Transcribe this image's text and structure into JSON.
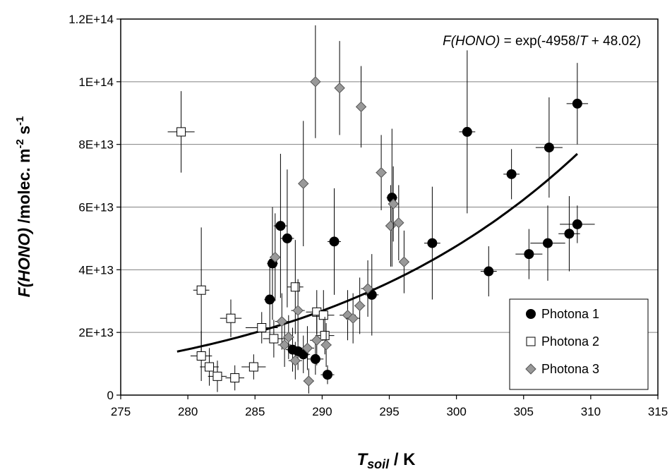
{
  "chart_data": {
    "type": "scatter",
    "equation_text": "F(HONO) = exp(-4958/T + 48.02)",
    "equation_parts": {
      "lhs": "F(HONO)",
      "mid": " = exp(-4958/",
      "var": "T",
      "rhs": " + 48.02)"
    },
    "xlabel": {
      "main": "T",
      "sub": "soil",
      "rest": " / K"
    },
    "ylabel": {
      "main": "F(HONO)",
      "rest": "  /molec. m",
      "sup1": "-2",
      "mid": " s",
      "sup2": "-1"
    },
    "xlim": [
      275,
      315
    ],
    "ylim": [
      0,
      120000000000000.0
    ],
    "xticks": [
      275,
      280,
      285,
      290,
      295,
      300,
      305,
      310,
      315
    ],
    "xtick_labels": [
      "275",
      "280",
      "285",
      "290",
      "295",
      "300",
      "305",
      "310",
      "315"
    ],
    "yticks": [
      0,
      20000000000000.0,
      40000000000000.0,
      60000000000000.0,
      80000000000000.0,
      100000000000000.0,
      120000000000000.0
    ],
    "ytick_labels": [
      "0",
      "2E+13",
      "4E+13",
      "6E+13",
      "8E+13",
      "1E+14",
      "1.2E+14"
    ],
    "grid": "horizontal",
    "legend_position": "bottom-right",
    "fit_curve": {
      "a": -4958,
      "b": 48.02,
      "x_range": [
        279.2,
        309.0
      ],
      "color": "#000000"
    },
    "series": [
      {
        "name": "Photona 1",
        "marker": "circle",
        "fill": "#000000",
        "points": [
          {
            "x": 286.1,
            "y": 30500000000000.0,
            "xerr": 0.4,
            "yerr": 13000000000000.0
          },
          {
            "x": 286.3,
            "y": 42000000000000.0,
            "xerr": 0.4,
            "yerr": 18000000000000.0
          },
          {
            "x": 286.9,
            "y": 54000000000000.0,
            "xerr": 0.5,
            "yerr": 23000000000000.0
          },
          {
            "x": 287.4,
            "y": 50000000000000.0,
            "xerr": 0.5,
            "yerr": 22000000000000.0
          },
          {
            "x": 287.8,
            "y": 14500000000000.0,
            "xerr": 0.5,
            "yerr": 7000000000000.0
          },
          {
            "x": 288.2,
            "y": 14000000000000.0,
            "xerr": 0.6,
            "yerr": 6000000000000.0
          },
          {
            "x": 288.6,
            "y": 13000000000000.0,
            "xerr": 0.5,
            "yerr": 6000000000000.0
          },
          {
            "x": 289.5,
            "y": 11500000000000.0,
            "xerr": 0.6,
            "yerr": 5000000000000.0
          },
          {
            "x": 290.4,
            "y": 6500000000000.0,
            "xerr": 0.5,
            "yerr": 3000000000000.0
          },
          {
            "x": 290.9,
            "y": 49000000000000.0,
            "xerr": 0.5,
            "yerr": 17000000000000.0
          },
          {
            "x": 293.7,
            "y": 32000000000000.0,
            "xerr": 0.5,
            "yerr": 13000000000000.0
          },
          {
            "x": 295.2,
            "y": 63000000000000.0,
            "xerr": 0.4,
            "yerr": 22000000000000.0
          },
          {
            "x": 298.2,
            "y": 48500000000000.0,
            "xerr": 0.6,
            "yerr": 18000000000000.0
          },
          {
            "x": 300.8,
            "y": 84000000000000.0,
            "xerr": 0.6,
            "yerr": 26000000000000.0
          },
          {
            "x": 302.4,
            "y": 39500000000000.0,
            "xerr": 0.6,
            "yerr": 8000000000000.0
          },
          {
            "x": 304.1,
            "y": 70500000000000.0,
            "xerr": 0.6,
            "yerr": 8000000000000.0
          },
          {
            "x": 305.4,
            "y": 45000000000000.0,
            "xerr": 1.0,
            "yerr": 8000000000000.0
          },
          {
            "x": 306.8,
            "y": 48500000000000.0,
            "xerr": 1.3,
            "yerr": 12000000000000.0
          },
          {
            "x": 306.9,
            "y": 79000000000000.0,
            "xerr": 1.0,
            "yerr": 16000000000000.0
          },
          {
            "x": 308.4,
            "y": 51500000000000.0,
            "xerr": 0.8,
            "yerr": 12000000000000.0
          },
          {
            "x": 309.0,
            "y": 93000000000000.0,
            "xerr": 0.8,
            "yerr": 13000000000000.0
          },
          {
            "x": 309.0,
            "y": 54500000000000.0,
            "xerr": 1.3,
            "yerr": 6000000000000.0
          }
        ]
      },
      {
        "name": "Photona 2",
        "marker": "square",
        "fill": "#ffffff",
        "points": [
          {
            "x": 279.5,
            "y": 84000000000000.0,
            "xerr": 1.0,
            "yerr": 13000000000000.0
          },
          {
            "x": 281.0,
            "y": 33500000000000.0,
            "xerr": 0.6,
            "yerr": 20000000000000.0
          },
          {
            "x": 281.0,
            "y": 12500000000000.0,
            "xerr": 0.8,
            "yerr": 8000000000000.0
          },
          {
            "x": 281.6,
            "y": 9000000000000.0,
            "xerr": 0.7,
            "yerr": 6000000000000.0
          },
          {
            "x": 282.2,
            "y": 6000000000000.0,
            "xerr": 0.7,
            "yerr": 5000000000000.0
          },
          {
            "x": 283.2,
            "y": 24500000000000.0,
            "xerr": 0.8,
            "yerr": 6000000000000.0
          },
          {
            "x": 283.5,
            "y": 5500000000000.0,
            "xerr": 0.7,
            "yerr": 4000000000000.0
          },
          {
            "x": 284.9,
            "y": 9000000000000.0,
            "xerr": 0.9,
            "yerr": 4000000000000.0
          },
          {
            "x": 285.5,
            "y": 21500000000000.0,
            "xerr": 1.2,
            "yerr": 5000000000000.0
          },
          {
            "x": 286.4,
            "y": 18000000000000.0,
            "xerr": 0.8,
            "yerr": 6000000000000.0
          },
          {
            "x": 288.0,
            "y": 34500000000000.0,
            "xerr": 0.6,
            "yerr": 15000000000000.0
          },
          {
            "x": 289.6,
            "y": 26500000000000.0,
            "xerr": 0.8,
            "yerr": 7000000000000.0
          },
          {
            "x": 290.1,
            "y": 25500000000000.0,
            "xerr": 0.8,
            "yerr": 8000000000000.0
          },
          {
            "x": 290.2,
            "y": 19000000000000.0,
            "xerr": 0.7,
            "yerr": 6000000000000.0
          }
        ]
      },
      {
        "name": "Photona 3",
        "marker": "diamond",
        "fill": "#999999",
        "points": [
          {
            "x": 286.5,
            "y": 44000000000000.0,
            "xerr": 0.4,
            "yerr": 14000000000000.0
          },
          {
            "x": 287.0,
            "y": 23500000000000.0,
            "xerr": 0.5,
            "yerr": 9000000000000.0
          },
          {
            "x": 287.2,
            "y": 16000000000000.0,
            "xerr": 0.5,
            "yerr": 7000000000000.0
          },
          {
            "x": 287.5,
            "y": 18500000000000.0,
            "xerr": 0.4,
            "yerr": 7000000000000.0
          },
          {
            "x": 288.0,
            "y": 11000000000000.0,
            "xerr": 0.5,
            "yerr": 6000000000000.0
          },
          {
            "x": 288.2,
            "y": 27000000000000.0,
            "xerr": 0.5,
            "yerr": 10000000000000.0
          },
          {
            "x": 288.6,
            "y": 67500000000000.0,
            "xerr": 0.3,
            "yerr": 20000000000000.0
          },
          {
            "x": 288.9,
            "y": 15000000000000.0,
            "xerr": 0.5,
            "yerr": 7000000000000.0
          },
          {
            "x": 289.0,
            "y": 4500000000000.0,
            "xerr": 0.4,
            "yerr": 4000000000000.0
          },
          {
            "x": 289.5,
            "y": 100000000000000.0,
            "xerr": 0.3,
            "yerr": 18000000000000.0
          },
          {
            "x": 289.6,
            "y": 17500000000000.0,
            "xerr": 0.5,
            "yerr": 8000000000000.0
          },
          {
            "x": 290.3,
            "y": 16000000000000.0,
            "xerr": 0.4,
            "yerr": 7000000000000.0
          },
          {
            "x": 291.3,
            "y": 98000000000000.0,
            "xerr": 0.3,
            "yerr": 15000000000000.0
          },
          {
            "x": 291.9,
            "y": 25500000000000.0,
            "xerr": 0.6,
            "yerr": 8000000000000.0
          },
          {
            "x": 292.3,
            "y": 24500000000000.0,
            "xerr": 0.5,
            "yerr": 8000000000000.0
          },
          {
            "x": 292.8,
            "y": 28500000000000.0,
            "xerr": 0.4,
            "yerr": 9000000000000.0
          },
          {
            "x": 292.9,
            "y": 92000000000000.0,
            "xerr": 0.3,
            "yerr": 13000000000000.0
          },
          {
            "x": 293.4,
            "y": 34000000000000.0,
            "xerr": 0.5,
            "yerr": 9000000000000.0
          },
          {
            "x": 294.4,
            "y": 71000000000000.0,
            "xerr": 0.4,
            "yerr": 12000000000000.0
          },
          {
            "x": 295.1,
            "y": 54000000000000.0,
            "xerr": 0.3,
            "yerr": 13000000000000.0
          },
          {
            "x": 295.3,
            "y": 61000000000000.0,
            "xerr": 0.3,
            "yerr": 12000000000000.0
          },
          {
            "x": 295.7,
            "y": 55000000000000.0,
            "xerr": 0.3,
            "yerr": 12000000000000.0
          },
          {
            "x": 296.1,
            "y": 42500000000000.0,
            "xerr": 0.3,
            "yerr": 10000000000000.0
          }
        ]
      }
    ]
  }
}
